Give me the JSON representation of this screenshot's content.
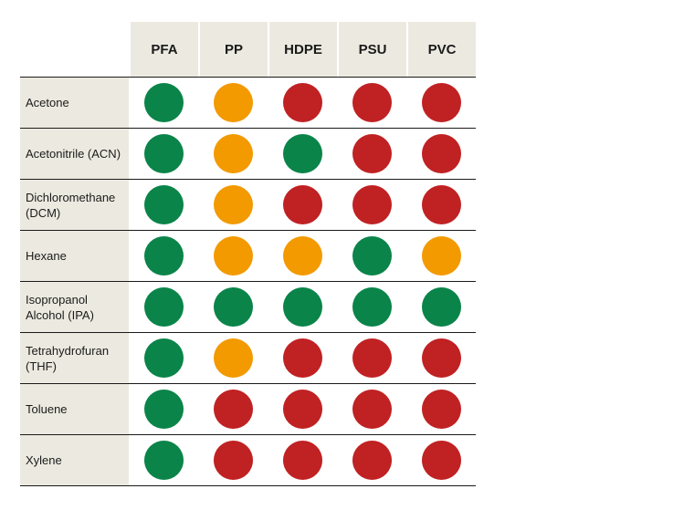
{
  "colors": {
    "green": "#0a8449",
    "orange": "#f29a00",
    "red": "#c02123",
    "header_bg": "#eceae0"
  },
  "columns": [
    "PFA",
    "PP",
    "HDPE",
    "PSU",
    "PVC"
  ],
  "rows": [
    {
      "label": "Acetone",
      "ratings": [
        "green",
        "orange",
        "red",
        "red",
        "red"
      ]
    },
    {
      "label": "Acetonitrile (ACN)",
      "ratings": [
        "green",
        "orange",
        "green",
        "red",
        "red"
      ]
    },
    {
      "label": "Dichloromethane (DCM)",
      "ratings": [
        "green",
        "orange",
        "red",
        "red",
        "red"
      ]
    },
    {
      "label": "Hexane",
      "ratings": [
        "green",
        "orange",
        "orange",
        "green",
        "orange"
      ]
    },
    {
      "label": "Isopropanol Alcohol (IPA)",
      "ratings": [
        "green",
        "green",
        "green",
        "green",
        "green"
      ]
    },
    {
      "label": "Tetrahydrofuran (THF)",
      "ratings": [
        "green",
        "orange",
        "red",
        "red",
        "red"
      ]
    },
    {
      "label": "Toluene",
      "ratings": [
        "green",
        "red",
        "red",
        "red",
        "red"
      ]
    },
    {
      "label": "Xylene",
      "ratings": [
        "green",
        "red",
        "red",
        "red",
        "red"
      ]
    }
  ]
}
